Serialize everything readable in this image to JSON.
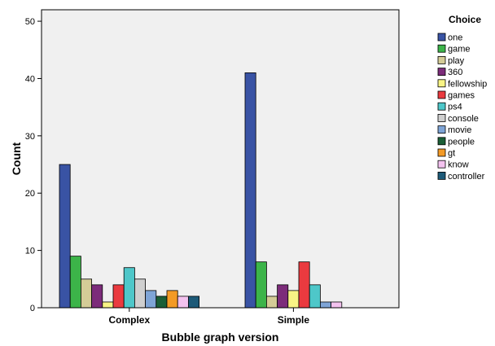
{
  "chart_data": {
    "type": "bar",
    "title": "",
    "xlabel": "Bubble graph version",
    "ylabel": "Count",
    "ylim": [
      0,
      52
    ],
    "yticks": [
      0,
      10,
      20,
      30,
      40,
      50
    ],
    "grid": false,
    "legend_title": "Choice",
    "legend_position": "right",
    "categories": [
      "Complex",
      "Simple"
    ],
    "series": [
      {
        "name": "one",
        "color": "#3953a4",
        "values": [
          25,
          41
        ]
      },
      {
        "name": "game",
        "color": "#3cb449",
        "values": [
          9,
          8
        ]
      },
      {
        "name": "play",
        "color": "#d4cc97",
        "values": [
          5,
          2
        ]
      },
      {
        "name": "360",
        "color": "#7c2c7a",
        "values": [
          4,
          4
        ]
      },
      {
        "name": "fellowship",
        "color": "#f8f485",
        "values": [
          1,
          3
        ]
      },
      {
        "name": "games",
        "color": "#ea3a3f",
        "values": [
          4,
          8
        ]
      },
      {
        "name": "ps4",
        "color": "#4ec7c9",
        "values": [
          7,
          4
        ]
      },
      {
        "name": "console",
        "color": "#cfcfcf",
        "values": [
          5,
          0
        ]
      },
      {
        "name": "movie",
        "color": "#7ea4d6",
        "values": [
          3,
          1
        ]
      },
      {
        "name": "people",
        "color": "#1a5e36",
        "values": [
          2,
          0
        ]
      },
      {
        "name": "gt",
        "color": "#f39a26",
        "values": [
          3,
          0
        ]
      },
      {
        "name": "know",
        "color": "#f3c2ef",
        "values": [
          2,
          1
        ]
      },
      {
        "name": "controller",
        "color": "#1d5a78",
        "values": [
          2,
          0
        ]
      }
    ]
  }
}
